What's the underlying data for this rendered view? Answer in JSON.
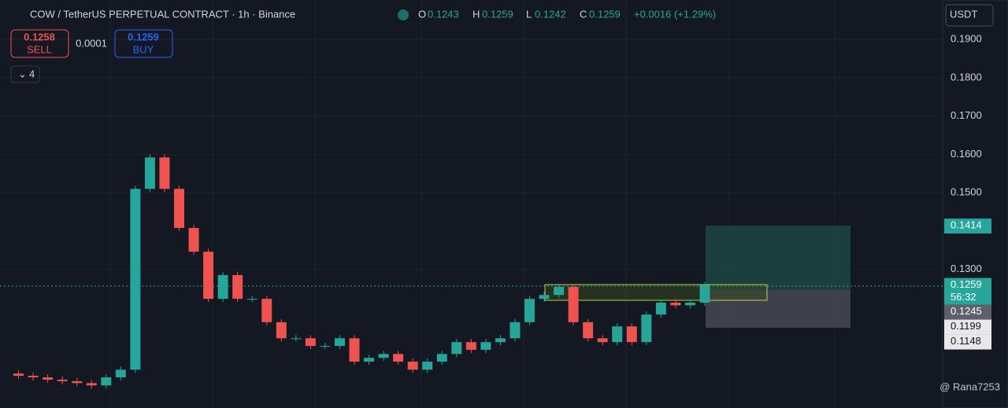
{
  "header": {
    "symbol": "COW / TetherUS PERPETUAL CONTRACT · 1h · Binance",
    "o_label": "O",
    "o": "0.1243",
    "h_label": "H",
    "h": "0.1259",
    "l_label": "L",
    "l": "0.1242",
    "c_label": "C",
    "c": "0.1259",
    "change": "+0.0016 (+1.29%)"
  },
  "trade": {
    "sell_price": "0.1258",
    "sell": "SELL",
    "spread": "0.0001",
    "buy_price": "0.1259",
    "buy": "BUY",
    "indicators": "4"
  },
  "currency": "USDT",
  "chart_data": {
    "type": "candlestick",
    "ylim": [
      0.0938,
      0.2003
    ],
    "yticks": [
      {
        "value": 0.19,
        "label": "0.1900"
      },
      {
        "value": 0.18,
        "label": "0.1800"
      },
      {
        "value": 0.17,
        "label": "0.1700"
      },
      {
        "value": 0.16,
        "label": "0.1600"
      },
      {
        "value": 0.15,
        "label": "0.1500"
      },
      {
        "value": 0.13,
        "label": "0.1300"
      }
    ],
    "closes": [
      0.1028,
      0.1022,
      0.1018,
      0.1012,
      0.1008,
      0.1003,
      0.0997,
      0.1018,
      0.1038,
      0.151,
      0.1592,
      0.151,
      0.1408,
      0.1346,
      0.1223,
      0.1285,
      0.1223,
      0.1223,
      0.1162,
      0.112,
      0.112,
      0.11,
      0.11,
      0.112,
      0.1059,
      0.1069,
      0.1079,
      0.1059,
      0.1038,
      0.1059,
      0.1079,
      0.111,
      0.109,
      0.111,
      0.112,
      0.1162,
      0.1223,
      0.1233,
      0.1254,
      0.1162,
      0.112,
      0.111,
      0.1151,
      0.111,
      0.1182,
      0.1213,
      0.1206,
      0.1213,
      0.1259
    ],
    "up_color": "#26a69a",
    "down_color": "#ef5350",
    "badges": [
      {
        "value": 0.1414,
        "label": "0.1414"
      },
      {
        "value": 0.1259,
        "label": "0.1259"
      },
      {
        "value": 0.1245,
        "label": "0.1245"
      },
      {
        "value": 0.1199,
        "label": "0.1199"
      },
      {
        "value": 0.1148,
        "label": "0.1148"
      }
    ],
    "countdown": "56:32"
  },
  "watermark": "@ Rana7253"
}
